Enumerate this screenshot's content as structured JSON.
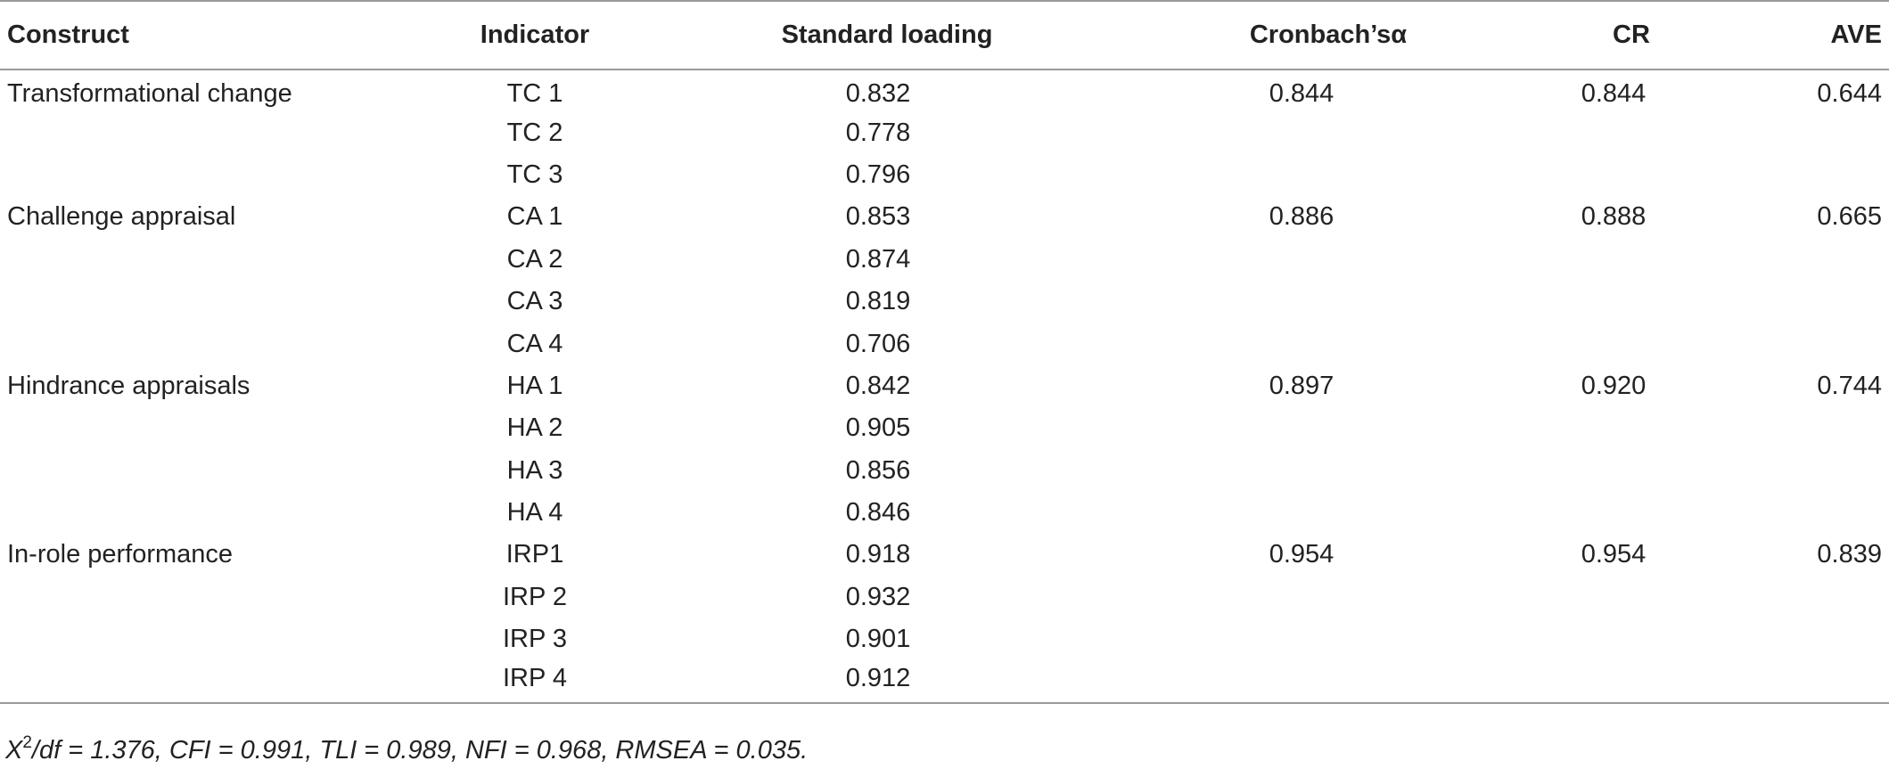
{
  "table": {
    "headers": {
      "construct": "Construct",
      "indicator": "Indicator",
      "loading": "Standard loading",
      "alpha": "Cronbach’sα",
      "cr": "CR",
      "ave": "AVE"
    },
    "rows": [
      {
        "construct": "Transformational change",
        "indicator": "TC 1",
        "loading": "0.832",
        "alpha": "0.844",
        "cr": "0.844",
        "ave": "0.644"
      },
      {
        "construct": "",
        "indicator": "TC 2",
        "loading": "0.778",
        "alpha": "",
        "cr": "",
        "ave": ""
      },
      {
        "construct": "",
        "indicator": "TC 3",
        "loading": "0.796",
        "alpha": "",
        "cr": "",
        "ave": ""
      },
      {
        "construct": "Challenge appraisal",
        "indicator": "CA 1",
        "loading": "0.853",
        "alpha": "0.886",
        "cr": "0.888",
        "ave": "0.665"
      },
      {
        "construct": "",
        "indicator": "CA 2",
        "loading": "0.874",
        "alpha": "",
        "cr": "",
        "ave": ""
      },
      {
        "construct": "",
        "indicator": "CA 3",
        "loading": "0.819",
        "alpha": "",
        "cr": "",
        "ave": ""
      },
      {
        "construct": "",
        "indicator": "CA 4",
        "loading": "0.706",
        "alpha": "",
        "cr": "",
        "ave": ""
      },
      {
        "construct": "Hindrance appraisals",
        "indicator": "HA 1",
        "loading": "0.842",
        "alpha": "0.897",
        "cr": "0.920",
        "ave": "0.744"
      },
      {
        "construct": "",
        "indicator": "HA 2",
        "loading": "0.905",
        "alpha": "",
        "cr": "",
        "ave": ""
      },
      {
        "construct": "",
        "indicator": "HA 3",
        "loading": "0.856",
        "alpha": "",
        "cr": "",
        "ave": ""
      },
      {
        "construct": "",
        "indicator": "HA 4",
        "loading": "0.846",
        "alpha": "",
        "cr": "",
        "ave": ""
      },
      {
        "construct": "In-role performance",
        "indicator": "IRP1",
        "loading": "0.918",
        "alpha": "0.954",
        "cr": "0.954",
        "ave": "0.839"
      },
      {
        "construct": "",
        "indicator": "IRP 2",
        "loading": "0.932",
        "alpha": "",
        "cr": "",
        "ave": ""
      },
      {
        "construct": "",
        "indicator": "IRP 3",
        "loading": "0.901",
        "alpha": "",
        "cr": "",
        "ave": ""
      },
      {
        "construct": "",
        "indicator": "IRP 4",
        "loading": "0.912",
        "alpha": "",
        "cr": "",
        "ave": ""
      }
    ]
  },
  "footnote": {
    "symbol": "X",
    "superscript": "2",
    "text": "/df = 1.376, CFI = 0.991, TLI = 0.989, NFI = 0.968, RMSEA = 0.035."
  }
}
